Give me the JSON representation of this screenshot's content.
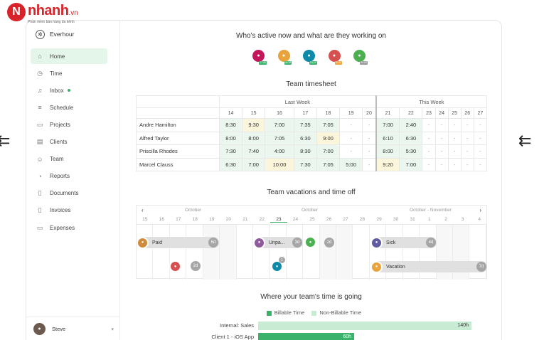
{
  "watermark": {
    "mark": "N",
    "name": "nhanh",
    "suffix": ".vn",
    "tagline": "Phần mềm bán hàng đa kênh"
  },
  "decor": {
    "left": "⇇",
    "right": "⇇"
  },
  "sidebar": {
    "brand": "Everhour",
    "items": [
      {
        "label": "Home",
        "icon": "home-icon",
        "glyph": "⌂",
        "active": true
      },
      {
        "label": "Time",
        "icon": "clock-icon",
        "glyph": "◷"
      },
      {
        "label": "Inbox",
        "icon": "bell-icon",
        "glyph": "♫",
        "dot": true
      },
      {
        "label": "Schedule",
        "icon": "schedule-icon",
        "glyph": "≡"
      },
      {
        "label": "Projects",
        "icon": "projects-icon",
        "glyph": "▭"
      },
      {
        "label": "Clients",
        "icon": "clients-icon",
        "glyph": "▤"
      },
      {
        "label": "Team",
        "icon": "team-icon",
        "glyph": "☺"
      },
      {
        "label": "Reports",
        "icon": "reports-icon",
        "glyph": "◔"
      },
      {
        "label": "Documents",
        "icon": "documents-icon",
        "glyph": "▯"
      },
      {
        "label": "Invoices",
        "icon": "invoices-icon",
        "glyph": "▯"
      },
      {
        "label": "Expenses",
        "icon": "expenses-icon",
        "glyph": "▭"
      }
    ],
    "user": {
      "name": "Steve"
    }
  },
  "active_title": "Who's active now and what are they working on",
  "active_users": [
    {
      "badge": "17:08",
      "color": "#c2185b",
      "badge_color": "#3bb26a"
    },
    {
      "badge": "06:28",
      "color": "#e8a33d",
      "badge_color": "#3bb26a"
    },
    {
      "badge": "03:24",
      "color": "#0d8ba8",
      "badge_color": "#3bb26a"
    },
    {
      "badge": "10:13",
      "color": "#d65050",
      "badge_color": "#e8a33d"
    },
    {
      "badge": "00:00",
      "color": "#4caf50",
      "badge_color": "#999999"
    }
  ],
  "timesheet": {
    "title": "Team timesheet",
    "last_week": "Last Week",
    "this_week": "This Week",
    "days": [
      "14",
      "15",
      "16",
      "17",
      "18",
      "19",
      "20",
      "21",
      "22",
      "23",
      "24",
      "25",
      "26",
      "27"
    ],
    "rows": [
      {
        "name": "Andre Hamilton",
        "cells": [
          "8:30",
          "9:30",
          "7:00",
          "7:35",
          "7:05",
          "-",
          "-",
          "7:00",
          "2:40",
          "-",
          "-",
          "-",
          "-",
          "-"
        ]
      },
      {
        "name": "Alfred Taylor",
        "cells": [
          "8:00",
          "8:00",
          "7:05",
          "6:30",
          "9:00",
          "-",
          "-",
          "6:10",
          "6:30",
          "-",
          "-",
          "-",
          "-",
          "-"
        ]
      },
      {
        "name": "Priscilla Rhodes",
        "cells": [
          "7:30",
          "7:40",
          "4:00",
          "8:30",
          "7:00",
          "-",
          "-",
          "8:00",
          "5:30",
          "-",
          "-",
          "-",
          "-",
          "-"
        ]
      },
      {
        "name": "Marcel Clauss",
        "cells": [
          "6:30",
          "7:00",
          "10:00",
          "7:30",
          "7:05",
          "5:00",
          "-",
          "9:20",
          "7:00",
          "-",
          "-",
          "-",
          "-",
          "-"
        ]
      }
    ]
  },
  "vacations": {
    "title": "Team vacations and time off",
    "months": [
      "October",
      "October",
      "October - November"
    ],
    "days": [
      "15",
      "16",
      "17",
      "18",
      "19",
      "20",
      "21",
      "22",
      "23",
      "24",
      "25",
      "26",
      "27",
      "28",
      "29",
      "30",
      "31",
      "1",
      "2",
      "3",
      "4"
    ],
    "bars": [
      {
        "label": "Paid",
        "count": "5d"
      },
      {
        "label": "Unpa...",
        "count": "3d"
      },
      {
        "label": "Sick",
        "count": "4d"
      },
      {
        "label": "Vacation",
        "count": "7d"
      }
    ],
    "extras": [
      {
        "count": "2d"
      },
      {
        "count": "2d"
      },
      {
        "count": "1"
      }
    ]
  },
  "time": {
    "title": "Where your team's time is going",
    "legend": {
      "billable": "Billable Time",
      "nonbillable": "Non-Billable Time"
    },
    "colors": {
      "billable": "#3bb26a",
      "nonbillable": "#c8ebd4"
    },
    "rows": [
      {
        "label": "Internal: Sales",
        "value": "140h",
        "share": 0.6,
        "kind": "nonbillable"
      },
      {
        "label": "Client 1 - iOS App",
        "value": "60h",
        "share": 0.27,
        "kind": "billable"
      }
    ]
  }
}
